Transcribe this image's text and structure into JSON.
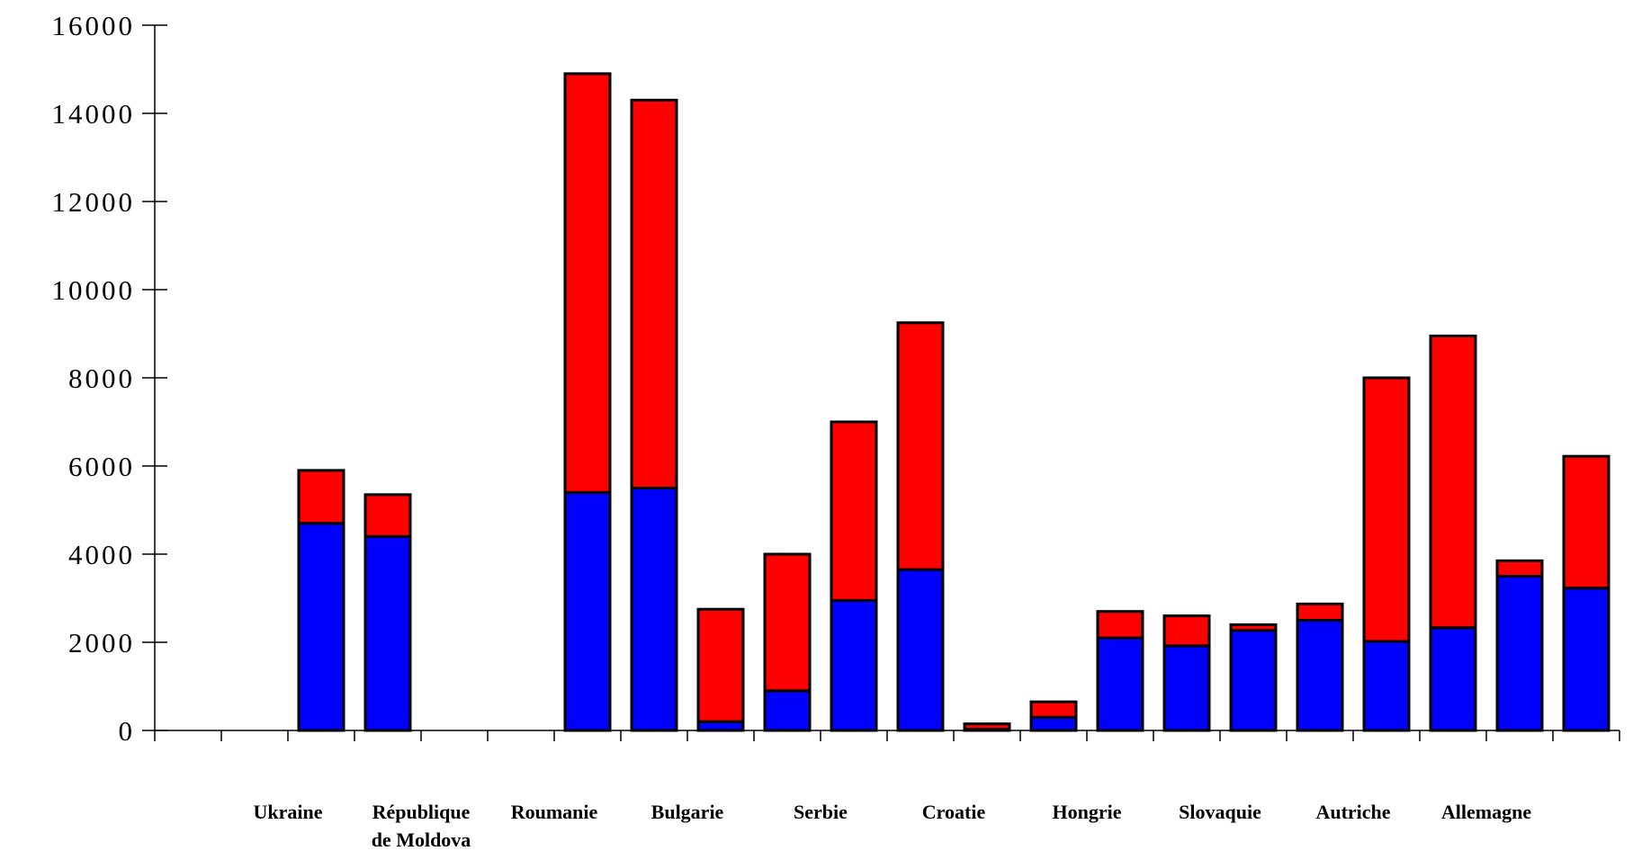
{
  "chart_data": {
    "type": "bar",
    "stacked": true,
    "ylim": [
      0,
      16000
    ],
    "yticks": [
      0,
      2000,
      4000,
      6000,
      8000,
      10000,
      12000,
      14000,
      16000
    ],
    "ytick_labels": [
      "0",
      "2000",
      "4000",
      "6000",
      "8000",
      "10000",
      "12000",
      "14000",
      "16000"
    ],
    "slot_count": 22,
    "country_labels": [
      {
        "lines": [
          "Ukraine"
        ],
        "center_slot": 2
      },
      {
        "lines": [
          "République",
          "de Moldova"
        ],
        "center_slot": 4
      },
      {
        "lines": [
          "Roumanie"
        ],
        "center_slot": 6
      },
      {
        "lines": [
          "Bulgarie"
        ],
        "center_slot": 8
      },
      {
        "lines": [
          "Serbie"
        ],
        "center_slot": 10
      },
      {
        "lines": [
          "Croatie"
        ],
        "center_slot": 12
      },
      {
        "lines": [
          "Hongrie"
        ],
        "center_slot": 14
      },
      {
        "lines": [
          "Slovaquie"
        ],
        "center_slot": 16
      },
      {
        "lines": [
          "Autriche"
        ],
        "center_slot": 18
      },
      {
        "lines": [
          "Allemagne"
        ],
        "center_slot": 20
      }
    ],
    "bars": [
      {
        "slot": 2,
        "base": 4700,
        "top": 1200
      },
      {
        "slot": 3,
        "base": 4400,
        "top": 950
      },
      {
        "slot": 6,
        "base": 5400,
        "top": 9500
      },
      {
        "slot": 7,
        "base": 5500,
        "top": 8800
      },
      {
        "slot": 8,
        "base": 200,
        "top": 2550
      },
      {
        "slot": 9,
        "base": 900,
        "top": 3100
      },
      {
        "slot": 10,
        "base": 2950,
        "top": 4050
      },
      {
        "slot": 11,
        "base": 3650,
        "top": 5600
      },
      {
        "slot": 12,
        "base": 30,
        "top": 120
      },
      {
        "slot": 13,
        "base": 300,
        "top": 350
      },
      {
        "slot": 14,
        "base": 2100,
        "top": 600
      },
      {
        "slot": 15,
        "base": 1920,
        "top": 680
      },
      {
        "slot": 16,
        "base": 2270,
        "top": 130
      },
      {
        "slot": 17,
        "base": 2500,
        "top": 370
      },
      {
        "slot": 18,
        "base": 2020,
        "top": 5980
      },
      {
        "slot": 19,
        "base": 2330,
        "top": 6620
      },
      {
        "slot": 20,
        "base": 3500,
        "top": 350
      },
      {
        "slot": 21,
        "base": 3230,
        "top": 2990
      }
    ],
    "series": [
      {
        "color": "#0000ff"
      },
      {
        "color": "#ff0000"
      }
    ]
  }
}
